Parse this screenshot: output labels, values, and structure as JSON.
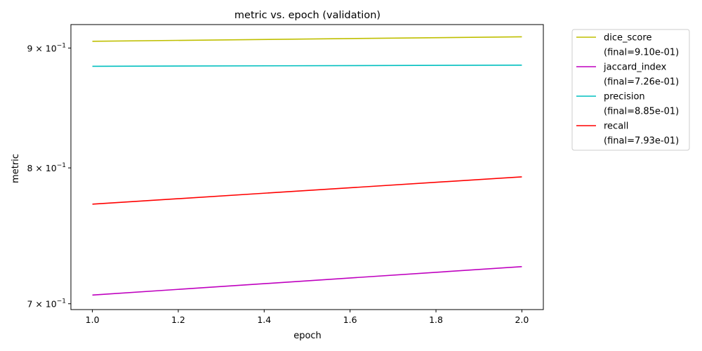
{
  "chart_data": {
    "type": "line",
    "title": "metric vs. epoch (validation)",
    "xlabel": "epoch",
    "ylabel": "metric",
    "yscale": "log",
    "xlim": [
      0.95,
      2.05
    ],
    "ylim": [
      0.696,
      0.921
    ],
    "xticks": [
      {
        "value": 1.0,
        "label": "1.0"
      },
      {
        "value": 1.2,
        "label": "1.2"
      },
      {
        "value": 1.4,
        "label": "1.4"
      },
      {
        "value": 1.6,
        "label": "1.6"
      },
      {
        "value": 1.8,
        "label": "1.8"
      },
      {
        "value": 2.0,
        "label": "2.0"
      }
    ],
    "yticks": [
      {
        "value": 0.7,
        "base": "7 × 10",
        "exp": "−1"
      },
      {
        "value": 0.8,
        "base": "8 × 10",
        "exp": "−1"
      },
      {
        "value": 0.9,
        "base": "9 × 10",
        "exp": "−1"
      }
    ],
    "grid": false,
    "legend_position": "outside-right-top",
    "x": [
      1.0,
      2.0
    ],
    "series": [
      {
        "name": "dice_score",
        "final_label": "(final=9.10e-01)",
        "color": "#bfbf00",
        "values": [
          0.906,
          0.91
        ]
      },
      {
        "name": "jaccard_index",
        "final_label": "(final=7.26e-01)",
        "color": "#bf00bf",
        "values": [
          0.706,
          0.726
        ]
      },
      {
        "name": "precision",
        "final_label": "(final=8.85e-01)",
        "color": "#00bfbf",
        "values": [
          0.884,
          0.885
        ]
      },
      {
        "name": "recall",
        "final_label": "(final=7.93e-01)",
        "color": "#ff0000",
        "values": [
          0.772,
          0.793
        ]
      }
    ]
  }
}
